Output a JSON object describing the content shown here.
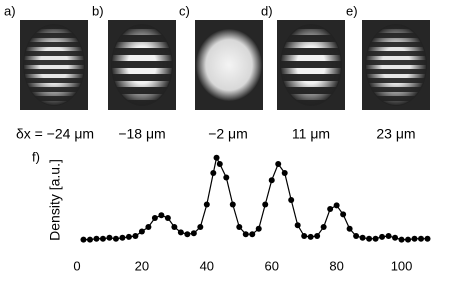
{
  "panels": [
    {
      "label": "a)",
      "caption": "δx = −24 μm"
    },
    {
      "label": "b)",
      "caption": "−18 μm"
    },
    {
      "label": "c)",
      "caption": "−2 μm"
    },
    {
      "label": "d)",
      "caption": "11 μm"
    },
    {
      "label": "e)",
      "caption": "23 μm"
    }
  ],
  "chart_data": {
    "type": "line",
    "label": "f)",
    "ylabel": "Density [a.u.]",
    "color": "#000",
    "x": [
      2,
      4,
      6,
      8,
      10,
      12,
      14,
      16,
      18,
      20,
      22,
      24,
      26,
      28,
      30,
      32,
      34,
      36,
      38,
      40,
      42,
      43,
      44,
      46,
      48,
      50,
      52,
      54,
      56,
      58,
      60,
      62,
      64,
      66,
      68,
      70,
      72,
      74,
      76,
      78,
      80,
      82,
      84,
      86,
      88,
      90,
      92,
      94,
      96,
      98,
      100,
      102,
      104,
      106,
      108
    ],
    "values": [
      0.06,
      0.06,
      0.07,
      0.07,
      0.08,
      0.07,
      0.08,
      0.09,
      0.1,
      0.15,
      0.2,
      0.3,
      0.33,
      0.3,
      0.2,
      0.14,
      0.12,
      0.13,
      0.2,
      0.45,
      0.8,
      0.97,
      0.9,
      0.75,
      0.45,
      0.2,
      0.12,
      0.12,
      0.18,
      0.45,
      0.72,
      0.9,
      0.8,
      0.5,
      0.22,
      0.1,
      0.09,
      0.1,
      0.2,
      0.4,
      0.44,
      0.34,
      0.18,
      0.1,
      0.08,
      0.07,
      0.07,
      0.09,
      0.1,
      0.08,
      0.06,
      0.06,
      0.07,
      0.07,
      0.07
    ],
    "xlim": [
      0,
      110
    ],
    "ylim": [
      0,
      1
    ],
    "xticks": [
      0,
      20,
      40,
      60,
      80,
      100
    ]
  }
}
